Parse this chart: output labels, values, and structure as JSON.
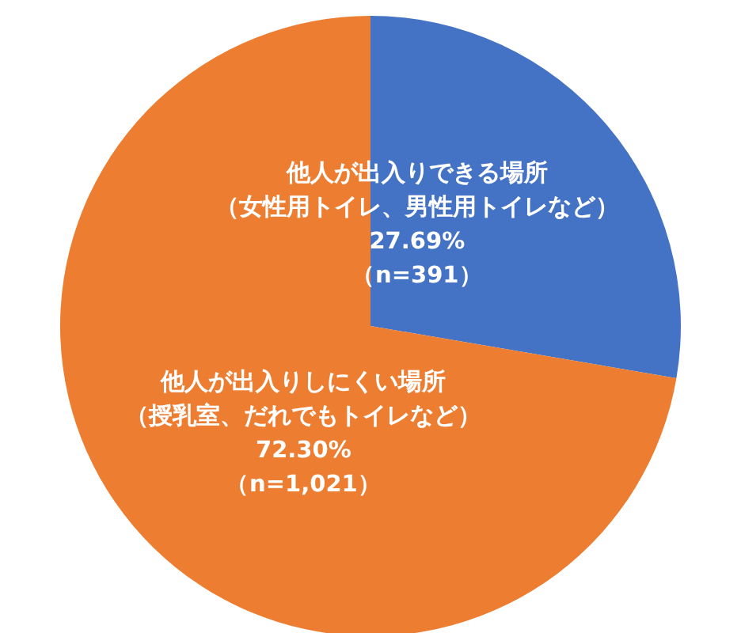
{
  "chart_data": {
    "type": "pie",
    "categories": [
      "他人が出入りできる場所（女性用トイレ、男性用トイレなど）",
      "他人が出入りしにくい場所（授乳室、だれでもトイレなど）"
    ],
    "values": [
      27.69,
      72.3
    ],
    "colors": [
      "#4472c4",
      "#ed7d31"
    ],
    "value_labels": [
      "27.69%\n（n=391）",
      "72.30%\n（n=1,021）"
    ]
  }
}
